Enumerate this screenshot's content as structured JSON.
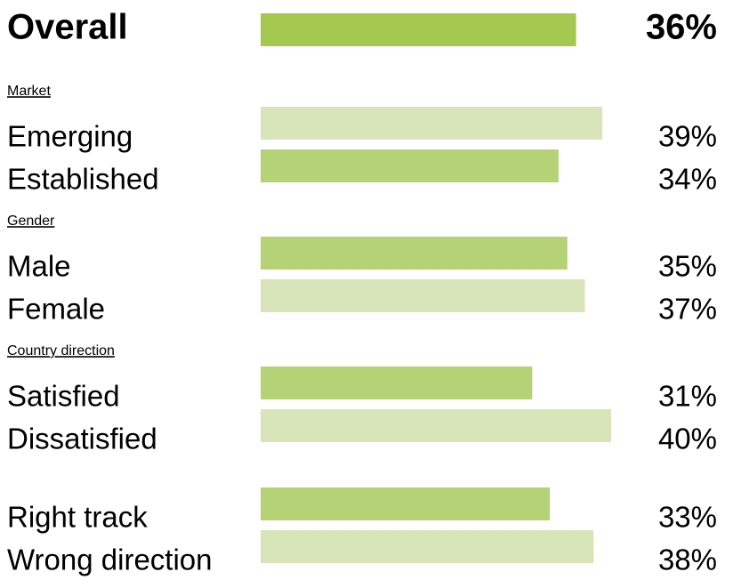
{
  "chart_data": {
    "type": "bar",
    "overall": {
      "label": "Overall",
      "value": 36,
      "value_label": "36%",
      "color": "#a4c850"
    },
    "groups": [
      {
        "name": "Market",
        "rows": [
          {
            "label": "Emerging",
            "value": 39,
            "value_label": "39%",
            "color": "#d7e5b9"
          },
          {
            "label": "Established",
            "value": 34,
            "value_label": "34%",
            "color": "#b5d276"
          }
        ]
      },
      {
        "name": "Gender",
        "rows": [
          {
            "label": "Male",
            "value": 35,
            "value_label": "35%",
            "color": "#b5d276"
          },
          {
            "label": "Female",
            "value": 37,
            "value_label": "37%",
            "color": "#d7e5b9"
          }
        ]
      },
      {
        "name": "Country direction",
        "rows": [
          {
            "label": "Satisfied",
            "value": 31,
            "value_label": "31%",
            "color": "#b5d276"
          },
          {
            "label": "Dissatisfied",
            "value": 40,
            "value_label": "40%",
            "color": "#d7e5b9"
          }
        ]
      },
      {
        "rows": [
          {
            "label": "Right track",
            "value": 33,
            "value_label": "33%",
            "color": "#b5d276"
          },
          {
            "label": "Wrong direction",
            "value": 38,
            "value_label": "38%",
            "color": "#d7e5b9"
          }
        ]
      }
    ]
  }
}
